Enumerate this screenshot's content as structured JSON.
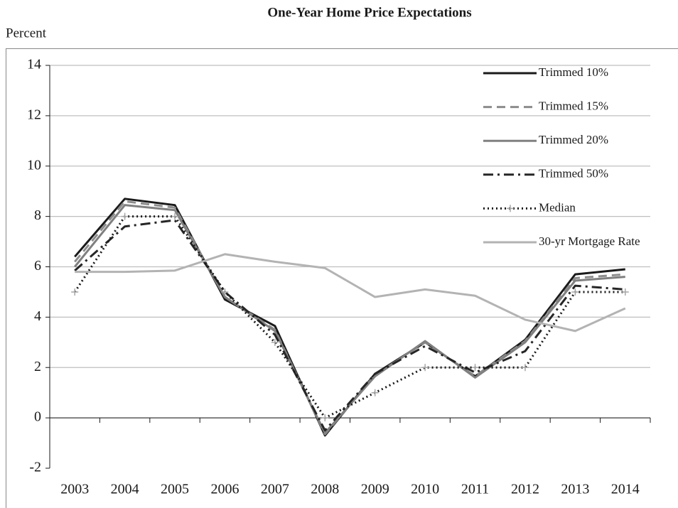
{
  "chart_data": {
    "type": "line",
    "title": "One-Year Home Price Expectations",
    "ylabel": "Percent",
    "categories": [
      "2003",
      "2004",
      "2005",
      "2006",
      "2007",
      "2008",
      "2009",
      "2010",
      "2011",
      "2012",
      "2013",
      "2014"
    ],
    "series": [
      {
        "name": "Trimmed 10%",
        "color": "#1a1a1a",
        "dash": "solid",
        "values": [
          6.4,
          8.7,
          8.45,
          4.7,
          3.65,
          -0.7,
          1.75,
          3.0,
          1.65,
          3.1,
          5.7,
          5.9
        ]
      },
      {
        "name": "Trimmed 15%",
        "color": "#8c8c8c",
        "dash": "dashed",
        "values": [
          6.2,
          8.6,
          8.35,
          4.8,
          3.5,
          -0.65,
          1.7,
          3.0,
          1.65,
          3.05,
          5.55,
          5.7
        ]
      },
      {
        "name": "Trimmed 20%",
        "color": "#808080",
        "dash": "solid",
        "values": [
          6.0,
          8.45,
          8.25,
          4.8,
          3.45,
          -0.6,
          1.65,
          3.05,
          1.6,
          3.0,
          5.45,
          5.6
        ]
      },
      {
        "name": "Trimmed 50%",
        "color": "#262626",
        "dash": "dashdot",
        "values": [
          5.85,
          7.6,
          7.85,
          5.0,
          3.3,
          -0.5,
          1.75,
          2.85,
          1.8,
          2.65,
          5.25,
          5.1
        ]
      },
      {
        "name": "Median",
        "color": "#1a1a1a",
        "dash": "dotted",
        "marker": "plus",
        "values": [
          5.0,
          8.0,
          8.0,
          5.0,
          3.0,
          0.0,
          1.0,
          2.0,
          2.0,
          2.0,
          5.0,
          5.0
        ]
      },
      {
        "name": "30-yr Mortgage Rate",
        "color": "#b3b3b3",
        "dash": "solid",
        "values": [
          5.8,
          5.8,
          5.85,
          6.5,
          6.2,
          5.95,
          4.8,
          5.1,
          4.85,
          3.9,
          3.45,
          4.35
        ]
      }
    ],
    "ylim": [
      -2,
      14
    ],
    "yticks": [
      -2,
      0,
      2,
      4,
      6,
      8,
      10,
      12,
      14
    ],
    "grid": true,
    "legend": "upper right"
  }
}
